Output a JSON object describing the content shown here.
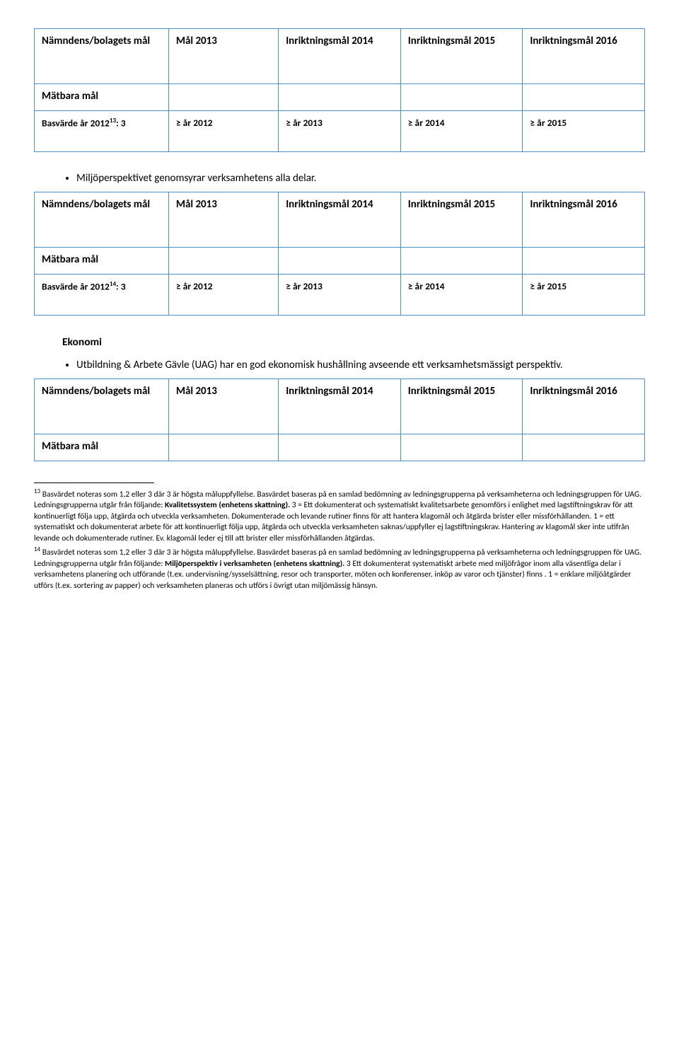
{
  "table1": {
    "h1": "Nämndens/bolagets mål",
    "h2": "Mål 2013",
    "h3": "Inriktningsmål 2014",
    "h4": "Inriktningsmål 2015",
    "h5": "Inriktningsmål 2016",
    "matbara": "Mätbara mål",
    "basv_pre": "Basvärde år 2012",
    "basv_sup": "13",
    "basv_post": ": 3",
    "b2": "≥ år 2012",
    "b3": "≥ år 2013",
    "b4": "≥ år 2014",
    "b5": "≥ år 2015"
  },
  "bullet1": "Miljöperspektivet genomsyrar verksamhetens alla delar.",
  "table2": {
    "h1": "Nämndens/bolagets mål",
    "h2": "Mål 2013",
    "h3": "Inriktningsmål 2014",
    "h4": "Inriktningsmål 2015",
    "h5": "Inriktningsmål 2016",
    "matbara": "Mätbara mål",
    "basv_pre": "Basvärde år 2012",
    "basv_sup": "14",
    "basv_post": ": 3",
    "b2": "≥ år 2012",
    "b3": "≥ år 2013",
    "b4": "≥ år 2014",
    "b5": "≥ år 2015"
  },
  "section2_title": "Ekonomi",
  "bullet2": "Utbildning & Arbete Gävle (UAG) har en god ekonomisk hushållning avseende ett verksamhetsmässigt perspektiv.",
  "table3": {
    "h1": "Nämndens/bolagets mål",
    "h2": "Mål 2013",
    "h3": "Inriktningsmål 2014",
    "h4": "Inriktningsmål 2015",
    "h5": "Inriktningsmål 2016",
    "matbara": "Mätbara mål"
  },
  "fn13_num": "13",
  "fn13_a": " Basvärdet noteras som 1,2 eller 3 där 3 är högsta måluppfyllelse. Basvärdet baseras på en samlad bedömning av ledningsgrupperna på verksamheterna och ledningsgruppen för UAG. Ledningsgrupperna utgår från följande: ",
  "fn13_bold": "Kvalitetssystem (enhetens skattning).",
  "fn13_b": " 3 =  Ett dokumenterat och systematiskt kvalitetsarbete genomförs i enlighet med lagstiftningskrav för att kontinuerligt följa upp, åtgärda och utveckla verksamheten. Dokumenterade och levande rutiner finns för att hantera klagomål och åtgärda brister eller missförhållanden. 1 = ett systematiskt och dokumenterat arbete för att kontinuerligt följa upp, åtgärda och utveckla verksamheten saknas/uppfyller ej lagstiftningskrav. Hantering av klagomål sker inte utifrån levande och dokumenterade rutiner. Ev. klagomål leder ej till att brister eller missförhållanden åtgärdas.",
  "fn14_num": "14",
  "fn14_a": " Basvärdet noteras som 1,2 eller 3 där 3 är högsta måluppfyllelse. Basvärdet baseras på en samlad bedömning av ledningsgrupperna på verksamheterna och ledningsgruppen för UAG. Ledningsgrupperna utgår från följande: ",
  "fn14_bold": "Miljöperspektiv i verksamheten (enhetens skattning).",
  "fn14_b": " 3  Ett dokumenterat systematiskt arbete med miljöfrågor inom alla väsentliga delar i verksamhetens planering och utförande (t.ex. undervisning/sysselsättning, resor och transporter, möten och konferenser, inköp av varor och tjänster) finns . 1 = enklare miljöåtgärder utförs (t.ex. sortering av papper) och verksamheten planeras och utförs i övrigt utan miljömässig hänsyn."
}
